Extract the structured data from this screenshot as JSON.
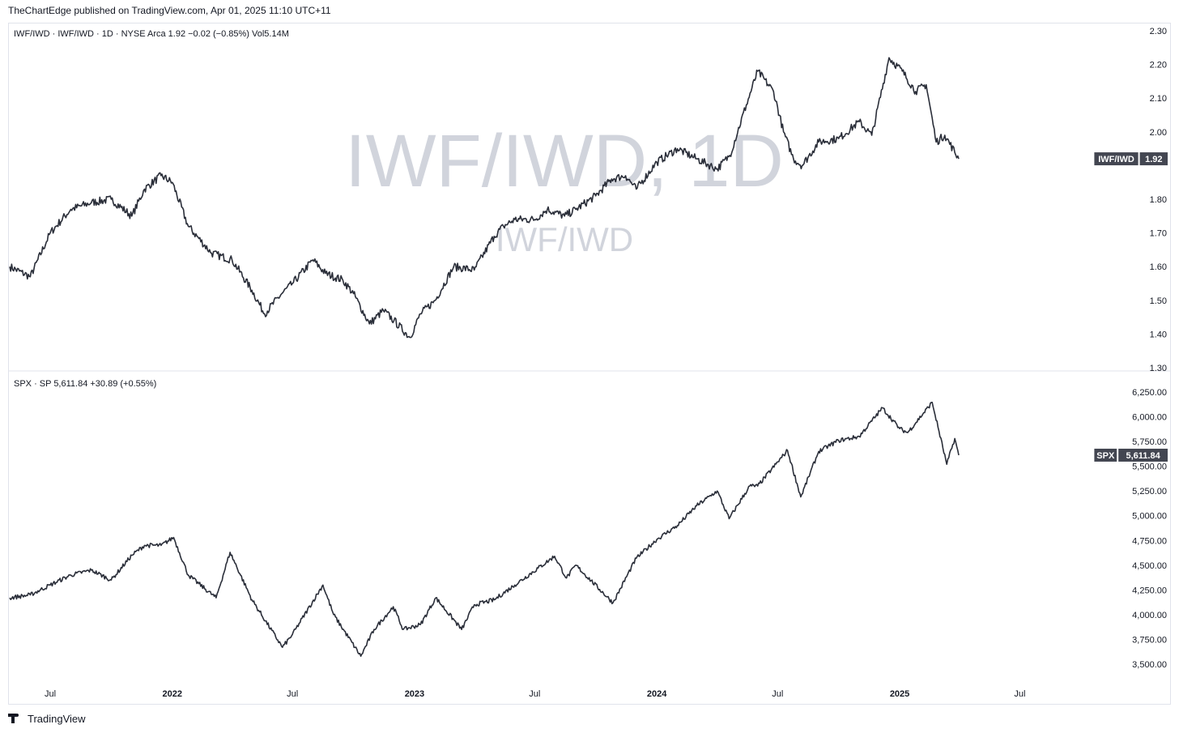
{
  "publisher": "TheChartEdge published on TradingView.com, Apr 01, 2025 11:10 UTC+11",
  "footer": {
    "brand": "TradingView",
    "logo_icon": "tradingview-logo-icon"
  },
  "colors": {
    "line": "#2a2e39",
    "axis_text": "#131722",
    "watermark": "#d1d4dc",
    "label_bg": "#434651",
    "label_text": "#ffffff",
    "divider": "#e0e3eb"
  },
  "chart_data": [
    {
      "type": "line",
      "legend": "IWF/IWD · IWF/IWD · 1D · NYSE Arca  1.92  −0.02 (−0.85%)  Vol5.14M",
      "watermark": "IWF/IWD, 1D",
      "watermark_sub": "IWF/IWD",
      "price_label": {
        "name": "IWF/IWD",
        "value": "1.92"
      },
      "ylim": [
        1.3,
        2.3
      ],
      "yticks": [
        "2.30",
        "2.20",
        "2.10",
        "2.00",
        "1.80",
        "1.70",
        "1.60",
        "1.50",
        "1.40",
        "1.30"
      ],
      "x": [
        "2021-05-01",
        "2021-06-01",
        "2021-07-01",
        "2021-08-01",
        "2021-09-01",
        "2021-10-01",
        "2021-11-01",
        "2021-11-20",
        "2021-12-15",
        "2022-01-01",
        "2022-01-25",
        "2022-03-01",
        "2022-04-01",
        "2022-05-01",
        "2022-05-20",
        "2022-06-15",
        "2022-07-01",
        "2022-08-01",
        "2022-08-20",
        "2022-09-15",
        "2022-10-01",
        "2022-10-25",
        "2022-11-15",
        "2022-12-01",
        "2022-12-25",
        "2023-01-10",
        "2023-02-01",
        "2023-03-01",
        "2023-04-01",
        "2023-05-01",
        "2023-05-15",
        "2023-06-01",
        "2023-07-01",
        "2023-07-20",
        "2023-08-15",
        "2023-09-01",
        "2023-10-01",
        "2023-10-25",
        "2023-11-15",
        "2023-12-01",
        "2024-01-01",
        "2024-02-01",
        "2024-03-01",
        "2024-04-01",
        "2024-04-20",
        "2024-05-15",
        "2024-06-01",
        "2024-06-25",
        "2024-07-10",
        "2024-07-25",
        "2024-08-07",
        "2024-09-01",
        "2024-10-01",
        "2024-11-01",
        "2024-11-20",
        "2024-12-16",
        "2025-01-05",
        "2025-01-25",
        "2025-02-10",
        "2025-02-25",
        "2025-03-10",
        "2025-03-31"
      ],
      "values": [
        1.6,
        1.57,
        1.7,
        1.77,
        1.79,
        1.8,
        1.75,
        1.83,
        1.87,
        1.85,
        1.72,
        1.64,
        1.62,
        1.53,
        1.46,
        1.52,
        1.55,
        1.62,
        1.58,
        1.56,
        1.52,
        1.43,
        1.47,
        1.44,
        1.39,
        1.46,
        1.5,
        1.6,
        1.59,
        1.69,
        1.72,
        1.74,
        1.74,
        1.77,
        1.75,
        1.77,
        1.81,
        1.86,
        1.87,
        1.83,
        1.91,
        1.95,
        1.92,
        1.89,
        1.93,
        2.08,
        2.18,
        2.12,
        2.0,
        1.92,
        1.9,
        1.97,
        1.98,
        2.03,
        1.99,
        2.22,
        2.18,
        2.12,
        2.14,
        1.97,
        1.99,
        1.92
      ]
    },
    {
      "type": "line",
      "legend": "SPX · SP  5,611.84  +30.89 (+0.55%)",
      "price_label": {
        "name": "SPX",
        "value": "5,611.84"
      },
      "ylim": [
        3410,
        6320
      ],
      "yticks": [
        "6,250.00",
        "6,000.00",
        "5,750.00",
        "5,500.00",
        "5,250.00",
        "5,000.00",
        "4,750.00",
        "4,500.00",
        "4,250.00",
        "4,000.00",
        "3,750.00",
        "3,500.00"
      ],
      "x": [
        "2021-05-01",
        "2021-06-01",
        "2021-07-01",
        "2021-08-01",
        "2021-09-01",
        "2021-10-01",
        "2021-11-01",
        "2021-11-20",
        "2021-12-15",
        "2022-01-03",
        "2022-01-25",
        "2022-03-08",
        "2022-03-29",
        "2022-05-01",
        "2022-06-16",
        "2022-07-01",
        "2022-08-16",
        "2022-09-01",
        "2022-10-12",
        "2022-11-01",
        "2022-11-30",
        "2022-12-15",
        "2023-01-10",
        "2023-02-02",
        "2023-03-13",
        "2023-04-01",
        "2023-05-01",
        "2023-06-01",
        "2023-07-31",
        "2023-08-18",
        "2023-09-01",
        "2023-10-27",
        "2023-12-01",
        "2024-01-01",
        "2024-02-01",
        "2024-03-01",
        "2024-04-01",
        "2024-04-19",
        "2024-05-20",
        "2024-06-01",
        "2024-07-16",
        "2024-08-05",
        "2024-09-01",
        "2024-10-01",
        "2024-11-01",
        "2024-12-06",
        "2025-01-01",
        "2025-01-13",
        "2025-02-19",
        "2025-03-13",
        "2025-03-25",
        "2025-03-31"
      ],
      "values": [
        4170,
        4200,
        4300,
        4400,
        4450,
        4350,
        4600,
        4700,
        4700,
        4780,
        4400,
        4170,
        4630,
        4150,
        3670,
        3800,
        4300,
        4000,
        3580,
        3850,
        4080,
        3850,
        3900,
        4170,
        3850,
        4100,
        4150,
        4300,
        4590,
        4370,
        4500,
        4120,
        4570,
        4760,
        4900,
        5100,
        5250,
        4970,
        5300,
        5300,
        5660,
        5190,
        5650,
        5760,
        5800,
        6090,
        5880,
        5840,
        6145,
        5520,
        5780,
        5611.84
      ]
    }
  ],
  "x_axis": {
    "ticks": [
      {
        "label": "Jul",
        "date": "2021-07-01",
        "bold": false
      },
      {
        "label": "2022",
        "date": "2022-01-01",
        "bold": true
      },
      {
        "label": "Jul",
        "date": "2022-07-01",
        "bold": false
      },
      {
        "label": "2023",
        "date": "2023-01-01",
        "bold": true
      },
      {
        "label": "Jul",
        "date": "2023-07-01",
        "bold": false
      },
      {
        "label": "2024",
        "date": "2024-01-01",
        "bold": true
      },
      {
        "label": "Jul",
        "date": "2024-07-01",
        "bold": false
      },
      {
        "label": "2025",
        "date": "2025-01-01",
        "bold": true
      },
      {
        "label": "Jul",
        "date": "2025-07-01",
        "bold": false
      }
    ]
  }
}
